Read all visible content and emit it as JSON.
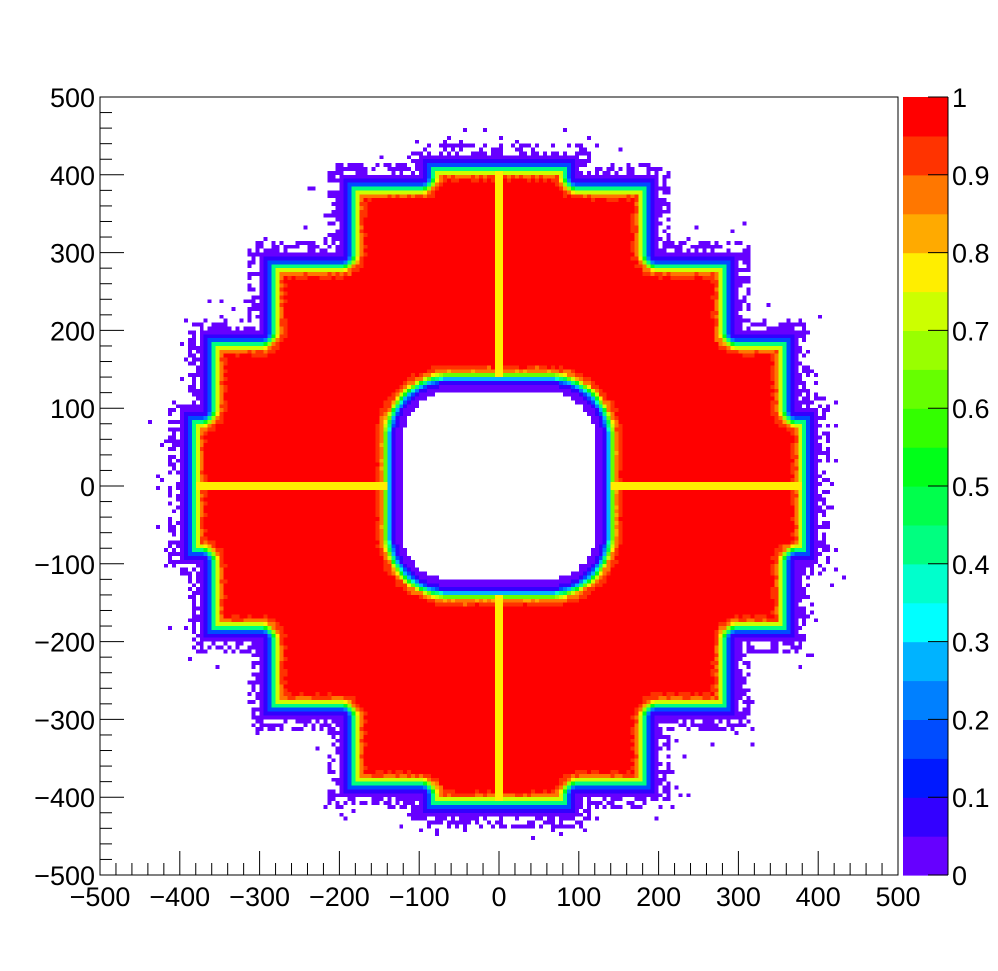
{
  "chart_data": {
    "type": "heatmap",
    "title": "",
    "xlabel": "",
    "ylabel": "",
    "zlabel": "",
    "xlim": [
      -500,
      500
    ],
    "ylim": [
      -500,
      500
    ],
    "zlim": [
      0,
      1
    ],
    "grid": false,
    "legend": "none",
    "x_ticks": [
      "−500",
      "−400",
      "−300",
      "−200",
      "−100",
      "0",
      "100",
      "200",
      "300",
      "400",
      "500"
    ],
    "y_ticks": [
      "500",
      "400",
      "300",
      "200",
      "100",
      "0",
      "−100",
      "−200",
      "−300",
      "−400",
      "−500"
    ],
    "colorbar_ticks": [
      "1",
      "0.9",
      "0.8",
      "0.7",
      "0.6",
      "0.5",
      "0.4",
      "0.3",
      "0.2",
      "0.1",
      "0"
    ],
    "colorbar_levels": [
      "#6600ff",
      "#3300ff",
      "#0019ff",
      "#004cff",
      "#0080ff",
      "#00b3ff",
      "#00ffff",
      "#00ffcc",
      "#00ff80",
      "#00ff4c",
      "#00ff19",
      "#33ff00",
      "#66ff00",
      "#99ff00",
      "#ccff00",
      "#ffee00",
      "#ffaa00",
      "#ff7700",
      "#ff3300",
      "#ff0000"
    ],
    "distribution": {
      "description_values": "fraction in [0,1]; ring shaped footprint with staircase outer boundary and rounded-square inner hole",
      "outer_boundary_vertices": [
        [
          -400,
          -100
        ],
        [
          -400,
          100
        ],
        [
          -375,
          100
        ],
        [
          -375,
          200
        ],
        [
          -300,
          200
        ],
        [
          -300,
          300
        ],
        [
          -200,
          300
        ],
        [
          -200,
          400
        ],
        [
          -100,
          400
        ],
        [
          -100,
          425
        ],
        [
          100,
          425
        ],
        [
          100,
          400
        ],
        [
          200,
          400
        ],
        [
          200,
          300
        ],
        [
          300,
          300
        ],
        [
          300,
          200
        ],
        [
          375,
          200
        ],
        [
          375,
          100
        ],
        [
          400,
          100
        ],
        [
          400,
          -100
        ],
        [
          375,
          -100
        ],
        [
          375,
          -200
        ],
        [
          300,
          -200
        ],
        [
          300,
          -300
        ],
        [
          200,
          -300
        ],
        [
          200,
          -400
        ],
        [
          100,
          -400
        ],
        [
          100,
          -425
        ],
        [
          -100,
          -425
        ],
        [
          -100,
          -400
        ],
        [
          -200,
          -400
        ],
        [
          -200,
          -300
        ],
        [
          -300,
          -300
        ],
        [
          -300,
          -200
        ],
        [
          -375,
          -200
        ],
        [
          -375,
          -100
        ]
      ],
      "inner_hole_halfwidth": 120,
      "inner_hole_corner_radius": 60,
      "cross_gap_value": 0.78,
      "plateau_value": 1.0
    }
  }
}
